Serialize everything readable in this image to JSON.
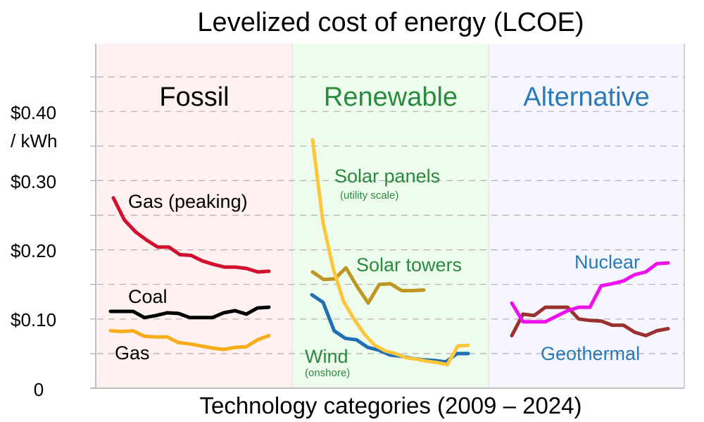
{
  "chart_data": {
    "type": "line",
    "title": "Levelized cost of energy (LCOE)",
    "xlabel": "Technology categories (2009 – 2024)",
    "ylabel": "$0.40 / kWh",
    "ylim": [
      0,
      0.5
    ],
    "y_ticks": [
      {
        "value": 0,
        "label": "0"
      },
      {
        "value": 0.1,
        "label": "$0.10"
      },
      {
        "value": 0.2,
        "label": "$0.20"
      },
      {
        "value": 0.3,
        "label": "$0.30"
      },
      {
        "value": 0.4,
        "label": "$0.40"
      }
    ],
    "y_unit_label": "/ kWh",
    "gridlines": [
      0.05,
      0.1,
      0.15,
      0.2,
      0.25,
      0.3,
      0.35,
      0.4,
      0.45
    ],
    "years": [
      2009,
      2010,
      2011,
      2012,
      2013,
      2014,
      2015,
      2016,
      2017,
      2018,
      2019,
      2020,
      2021,
      2022,
      2023,
      2024
    ],
    "panels": [
      {
        "key": "fossil",
        "title": "Fossil",
        "title_color": "#000000",
        "bg_color": "#fff1f1",
        "series": [
          {
            "name": "Gas (peaking)",
            "color": "#d0102e",
            "values": [
              0.275,
              0.243,
              0.226,
              0.214,
              0.204,
              0.204,
              0.193,
              0.192,
              0.184,
              0.179,
              0.175,
              0.175,
              0.173,
              0.168,
              0.169
            ]
          },
          {
            "name": "Coal",
            "color": "#000000",
            "values": [
              0.111,
              0.111,
              0.111,
              0.102,
              0.105,
              0.109,
              0.108,
              0.102,
              0.102,
              0.102,
              0.109,
              0.112,
              0.107,
              0.116,
              0.117
            ]
          },
          {
            "name": "Gas",
            "color": "#f7ad1a",
            "values": [
              0.083,
              0.082,
              0.083,
              0.075,
              0.074,
              0.074,
              0.066,
              0.064,
              0.061,
              0.058,
              0.056,
              0.059,
              0.06,
              0.07,
              0.076
            ]
          }
        ]
      },
      {
        "key": "renewable",
        "title": "Renewable",
        "title_color": "#2a8a3e",
        "bg_color": "#eefcee",
        "series": [
          {
            "name": "Solar panels",
            "subtitle": "(utility scale)",
            "color": "#fdc73d",
            "values": [
              0.359,
              0.24,
              0.172,
              0.125,
              0.1,
              0.078,
              0.062,
              0.054,
              0.05,
              0.044,
              0.042,
              0.039,
              0.037,
              0.034,
              0.061,
              0.062
            ]
          },
          {
            "name": "Solar towers",
            "color": "#c09623",
            "values": [
              0.168,
              0.157,
              0.158,
              0.174,
              0.147,
              0.123,
              0.15,
              0.151,
              0.141,
              0.141,
              0.142
            ]
          },
          {
            "name": "Wind",
            "subtitle": "(onshore)",
            "color": "#1f6fb4",
            "values": [
              0.135,
              0.124,
              0.083,
              0.072,
              0.07,
              0.059,
              0.055,
              0.048,
              0.046,
              0.043,
              0.041,
              0.04,
              0.038,
              0.05,
              0.05
            ]
          }
        ]
      },
      {
        "key": "alternative",
        "title": "Alternative",
        "title_color": "#2a7ab8",
        "bg_color": "#f6f6fe",
        "series": [
          {
            "name": "Nuclear",
            "color": "#ee11ee",
            "values": [
              0.123,
              0.096,
              0.096,
              0.096,
              0.104,
              0.112,
              0.117,
              0.117,
              0.148,
              0.151,
              0.155,
              0.164,
              0.168,
              0.18,
              0.181
            ]
          },
          {
            "name": "Geothermal",
            "color": "#9b3030",
            "values": [
              0.076,
              0.107,
              0.105,
              0.117,
              0.117,
              0.117,
              0.1,
              0.098,
              0.097,
              0.091,
              0.091,
              0.081,
              0.076,
              0.083,
              0.086
            ]
          }
        ]
      }
    ]
  }
}
